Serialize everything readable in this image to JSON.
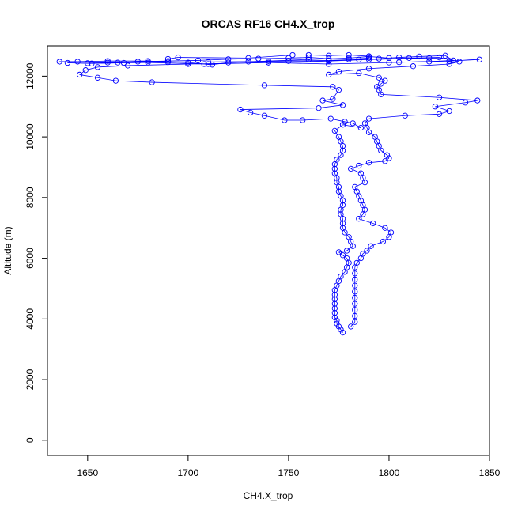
{
  "chart_data": {
    "type": "scatter",
    "title": "ORCAS RF16 CH4.X_trop",
    "xlabel": "CH4.X_trop",
    "ylabel": "Altitude (m)",
    "xlim": [
      1630,
      1850
    ],
    "ylim": [
      -500,
      13000
    ],
    "x_ticks": [
      1650,
      1700,
      1750,
      1800,
      1850
    ],
    "y_ticks": [
      0,
      2000,
      4000,
      6000,
      8000,
      10000,
      12000
    ],
    "x_tick_labels": [
      "1650",
      "1700",
      "1750",
      "1800",
      "1850"
    ],
    "y_tick_labels": [
      "0",
      "2000",
      "4000",
      "6000",
      "8000",
      "10000",
      "12000"
    ],
    "marker": "open-circle",
    "connected": true,
    "grid": false,
    "legend": "none",
    "colors": {
      "series": "#0000ff",
      "axis": "#000000"
    },
    "series": [
      {
        "points": [
          [
            1777,
            3550
          ],
          [
            1776,
            3650
          ],
          [
            1775,
            3750
          ],
          [
            1774,
            3850
          ],
          [
            1774,
            3950
          ],
          [
            1773,
            4050
          ],
          [
            1773,
            4200
          ],
          [
            1773,
            4350
          ],
          [
            1773,
            4500
          ],
          [
            1773,
            4650
          ],
          [
            1773,
            4800
          ],
          [
            1773,
            4950
          ],
          [
            1774,
            5100
          ],
          [
            1775,
            5250
          ],
          [
            1776,
            5400
          ],
          [
            1778,
            5550
          ],
          [
            1779,
            5700
          ],
          [
            1780,
            5850
          ],
          [
            1779,
            6000
          ],
          [
            1777,
            6100
          ],
          [
            1775,
            6200
          ],
          [
            1779,
            6250
          ],
          [
            1782,
            6400
          ],
          [
            1781,
            6550
          ],
          [
            1780,
            6700
          ],
          [
            1778,
            6850
          ],
          [
            1777,
            7000
          ],
          [
            1777,
            7150
          ],
          [
            1777,
            7300
          ],
          [
            1776,
            7450
          ],
          [
            1776,
            7600
          ],
          [
            1777,
            7750
          ],
          [
            1777,
            7900
          ],
          [
            1776,
            8050
          ],
          [
            1775,
            8200
          ],
          [
            1775,
            8350
          ],
          [
            1774,
            8500
          ],
          [
            1774,
            8650
          ],
          [
            1773,
            8800
          ],
          [
            1773,
            8950
          ],
          [
            1773,
            9100
          ],
          [
            1774,
            9250
          ],
          [
            1776,
            9400
          ],
          [
            1777,
            9550
          ],
          [
            1777,
            9700
          ],
          [
            1776,
            9850
          ],
          [
            1775,
            10000
          ],
          [
            1773,
            10200
          ],
          [
            1777,
            10400
          ],
          [
            1786,
            10300
          ],
          [
            1782,
            10450
          ],
          [
            1778,
            10500
          ],
          [
            1771,
            10600
          ],
          [
            1757,
            10550
          ],
          [
            1748,
            10550
          ],
          [
            1738,
            10700
          ],
          [
            1731,
            10800
          ],
          [
            1726,
            10900
          ],
          [
            1765,
            10950
          ],
          [
            1777,
            11050
          ],
          [
            1767,
            11200
          ],
          [
            1772,
            11250
          ],
          [
            1775,
            11550
          ],
          [
            1772,
            11650
          ],
          [
            1738,
            11700
          ],
          [
            1682,
            11800
          ],
          [
            1664,
            11850
          ],
          [
            1655,
            11950
          ],
          [
            1646,
            12050
          ],
          [
            1649,
            12200
          ],
          [
            1655,
            12300
          ],
          [
            1670,
            12350
          ],
          [
            1700,
            12400
          ],
          [
            1740,
            12450
          ],
          [
            1770,
            12500
          ],
          [
            1790,
            12550
          ],
          [
            1820,
            12600
          ],
          [
            1845,
            12550
          ],
          [
            1830,
            12500
          ],
          [
            1800,
            12450
          ],
          [
            1770,
            12400
          ],
          [
            1740,
            12450
          ],
          [
            1710,
            12400
          ],
          [
            1680,
            12450
          ],
          [
            1660,
            12450
          ],
          [
            1636,
            12480
          ],
          [
            1645,
            12480
          ],
          [
            1660,
            12500
          ],
          [
            1680,
            12500
          ],
          [
            1700,
            12450
          ],
          [
            1708,
            12400
          ],
          [
            1712,
            12380
          ],
          [
            1720,
            12450
          ],
          [
            1740,
            12500
          ],
          [
            1760,
            12550
          ],
          [
            1780,
            12600
          ],
          [
            1790,
            12650
          ],
          [
            1800,
            12600
          ],
          [
            1810,
            12600
          ],
          [
            1825,
            12620
          ],
          [
            1835,
            12480
          ],
          [
            1830,
            12400
          ],
          [
            1812,
            12330
          ],
          [
            1790,
            12250
          ],
          [
            1775,
            12150
          ],
          [
            1770,
            12050
          ],
          [
            1785,
            12100
          ],
          [
            1795,
            11950
          ],
          [
            1798,
            11850
          ],
          [
            1796,
            11750
          ],
          [
            1794,
            11650
          ],
          [
            1795,
            11550
          ],
          [
            1796,
            11400
          ],
          [
            1825,
            11300
          ],
          [
            1844,
            11200
          ],
          [
            1838,
            11130
          ],
          [
            1823,
            11000
          ],
          [
            1830,
            10850
          ],
          [
            1825,
            10750
          ],
          [
            1808,
            10700
          ],
          [
            1790,
            10600
          ],
          [
            1788,
            10450
          ],
          [
            1789,
            10300
          ],
          [
            1790,
            10150
          ],
          [
            1793,
            10000
          ],
          [
            1794,
            9850
          ],
          [
            1795,
            9700
          ],
          [
            1796,
            9550
          ],
          [
            1799,
            9400
          ],
          [
            1800,
            9300
          ],
          [
            1798,
            9200
          ],
          [
            1790,
            9150
          ],
          [
            1785,
            9050
          ],
          [
            1781,
            8950
          ],
          [
            1786,
            8800
          ],
          [
            1787,
            8650
          ],
          [
            1788,
            8500
          ],
          [
            1783,
            8350
          ],
          [
            1784,
            8200
          ],
          [
            1785,
            8050
          ],
          [
            1786,
            7900
          ],
          [
            1787,
            7750
          ],
          [
            1788,
            7600
          ],
          [
            1787,
            7450
          ],
          [
            1785,
            7300
          ],
          [
            1792,
            7150
          ],
          [
            1798,
            7000
          ],
          [
            1801,
            6850
          ],
          [
            1800,
            6700
          ],
          [
            1797,
            6550
          ],
          [
            1791,
            6400
          ],
          [
            1789,
            6250
          ],
          [
            1787,
            6150
          ],
          [
            1786,
            6000
          ],
          [
            1784,
            5850
          ],
          [
            1783,
            5700
          ],
          [
            1783,
            5500
          ],
          [
            1783,
            5300
          ],
          [
            1783,
            5100
          ],
          [
            1783,
            4900
          ],
          [
            1783,
            4700
          ],
          [
            1783,
            4500
          ],
          [
            1783,
            4300
          ],
          [
            1783,
            4100
          ],
          [
            1783,
            3900
          ],
          [
            1781,
            3750
          ]
        ]
      },
      {
        "points": [
          [
            1690,
            12570
          ],
          [
            1695,
            12620
          ],
          [
            1730,
            12600
          ],
          [
            1752,
            12700
          ],
          [
            1760,
            12700
          ],
          [
            1770,
            12680
          ],
          [
            1780,
            12700
          ],
          [
            1790,
            12660
          ],
          [
            1790,
            12600
          ],
          [
            1780,
            12560
          ],
          [
            1770,
            12580
          ],
          [
            1760,
            12620
          ],
          [
            1750,
            12600
          ],
          [
            1735,
            12580
          ],
          [
            1720,
            12560
          ],
          [
            1705,
            12520
          ],
          [
            1690,
            12500
          ],
          [
            1675,
            12480
          ],
          [
            1665,
            12450
          ],
          [
            1650,
            12430
          ],
          [
            1640,
            12440
          ],
          [
            1652,
            12420
          ],
          [
            1668,
            12440
          ],
          [
            1690,
            12460
          ],
          [
            1710,
            12470
          ],
          [
            1730,
            12480
          ],
          [
            1750,
            12500
          ],
          [
            1770,
            12520
          ],
          [
            1785,
            12550
          ],
          [
            1795,
            12580
          ],
          [
            1805,
            12620
          ],
          [
            1815,
            12650
          ],
          [
            1828,
            12680
          ],
          [
            1832,
            12520
          ],
          [
            1820,
            12480
          ],
          [
            1805,
            12460
          ]
        ]
      }
    ]
  }
}
